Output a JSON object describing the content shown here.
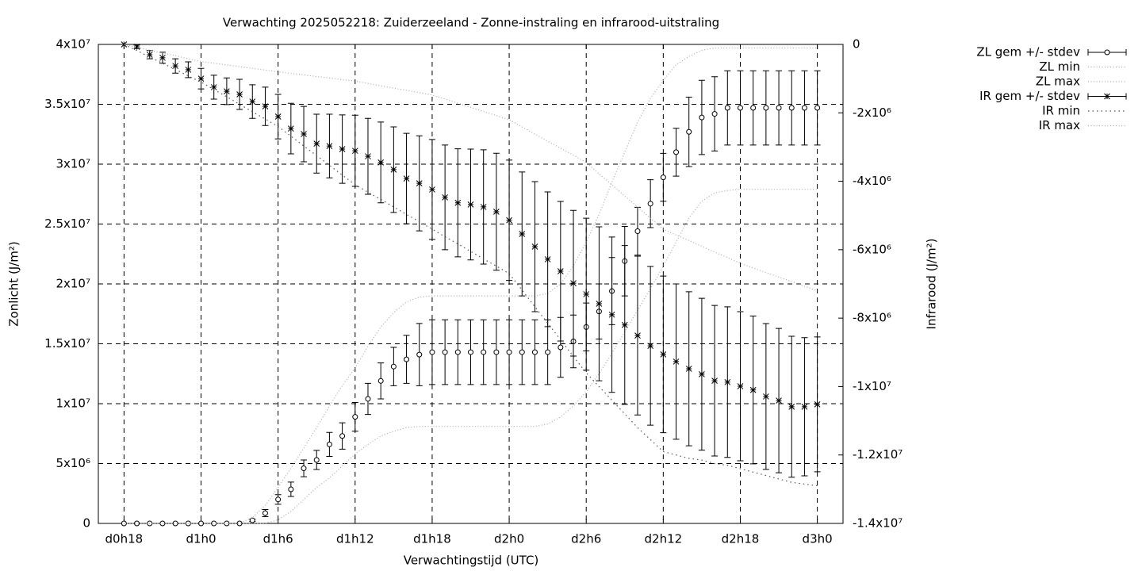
{
  "chart_data": {
    "type": "errorbar",
    "title": "Verwachting 2025052218: Zuiderzeeland - Zonne-instraling en infrarood-uitstraling",
    "xlabel": "Verwachtingstijd (UTC)",
    "ylabel": "Zonlicht (J/m²)",
    "y2label": "Infrarood (J/m²)",
    "grid": true,
    "legend": "outside-top-right",
    "xlim": [
      16,
      74
    ],
    "xticks": [
      {
        "value": 18,
        "label": "d0h18"
      },
      {
        "value": 24,
        "label": "d1h0"
      },
      {
        "value": 30,
        "label": "d1h6"
      },
      {
        "value": 36,
        "label": "d1h12"
      },
      {
        "value": 42,
        "label": "d1h18"
      },
      {
        "value": 48,
        "label": "d2h0"
      },
      {
        "value": 54,
        "label": "d2h6"
      },
      {
        "value": 60,
        "label": "d2h12"
      },
      {
        "value": 66,
        "label": "d2h18"
      },
      {
        "value": 72,
        "label": "d3h0"
      }
    ],
    "ylim": [
      0,
      40000000.0
    ],
    "yticks": [
      0,
      {
        "value": 5000000.0,
        "label": "5x10⁶"
      },
      {
        "value": 10000000.0,
        "label": "1x10⁷"
      },
      {
        "value": 15000000.0,
        "label": "1.5x10⁷"
      },
      {
        "value": 20000000.0,
        "label": "2x10⁷"
      },
      {
        "value": 25000000.0,
        "label": "2.5x10⁷"
      },
      {
        "value": 30000000.0,
        "label": "3x10⁷"
      },
      {
        "value": 35000000.0,
        "label": "3.5x10⁷"
      },
      {
        "value": 40000000.0,
        "label": "4x10⁷"
      }
    ],
    "y2lim": [
      -14000000.0,
      0
    ],
    "y2ticks": [
      0,
      {
        "value": -2000000.0,
        "label": "-2x10⁶"
      },
      {
        "value": -4000000.0,
        "label": "-4x10⁶"
      },
      {
        "value": -6000000.0,
        "label": "-6x10⁶"
      },
      {
        "value": -8000000.0,
        "label": "-8x10⁶"
      },
      {
        "value": -10000000.0,
        "label": "-1x10⁷"
      },
      {
        "value": -12000000.0,
        "label": "-1.2x10⁷"
      },
      {
        "value": -14000000.0,
        "label": "-1.4x10⁷"
      }
    ],
    "x": [
      18,
      19,
      20,
      21,
      22,
      23,
      24,
      25,
      26,
      27,
      28,
      29,
      30,
      31,
      32,
      33,
      34,
      35,
      36,
      37,
      38,
      39,
      40,
      41,
      42,
      43,
      44,
      45,
      46,
      47,
      48,
      49,
      50,
      51,
      52,
      53,
      54,
      55,
      56,
      57,
      58,
      59,
      60,
      61,
      62,
      63,
      64,
      65,
      66,
      67,
      68,
      69,
      70,
      71,
      72
    ],
    "series": [
      {
        "name": "ZL gem +/- stdev",
        "color": "#000000",
        "style": "errorbars",
        "marker": "circle",
        "axis": "y",
        "values": [
          0,
          0,
          0,
          0,
          0,
          0,
          0,
          0,
          0,
          0,
          260000.0,
          860000.0,
          2000000.0,
          2850000.0,
          4600000.0,
          5300000.0,
          6600000.0,
          7300000.0,
          8900000.0,
          10400000.0,
          11900000.0,
          13100000.0,
          13700000.0,
          14100000.0,
          14300000.0,
          14300000.0,
          14300000.0,
          14300000.0,
          14300000.0,
          14300000.0,
          14300000.0,
          14300000.0,
          14300000.0,
          14300000.0,
          14700000.0,
          15200000.0,
          16400000.0,
          17700000.0,
          19400000.0,
          21900000.0,
          24400000.0,
          26700000.0,
          28900000.0,
          31000000.0,
          32700000.0,
          33900000.0,
          34200000.0,
          34700000.0,
          34700000.0,
          34700000.0,
          34700000.0,
          34700000.0,
          34700000.0,
          34700000.0,
          34700000.0
        ],
        "errors": [
          0,
          0,
          0,
          0,
          0,
          0,
          0,
          0,
          0,
          0,
          100000.0,
          300000.0,
          400000.0,
          600000.0,
          700000.0,
          800000.0,
          1000000.0,
          1100000.0,
          1200000.0,
          1300000.0,
          1500000.0,
          1600000.0,
          2000000.0,
          2600000.0,
          2700000.0,
          2700000.0,
          2700000.0,
          2700000.0,
          2700000.0,
          2700000.0,
          2700000.0,
          2700000.0,
          2700000.0,
          2700000.0,
          2500000.0,
          2200000.0,
          2000000.0,
          2300000.0,
          2800000.0,
          2900000.0,
          2000000.0,
          2000000.0,
          2000000.0,
          2000000.0,
          2900000.0,
          3100000.0,
          3100000.0,
          3100000.0,
          3100000.0,
          3100000.0,
          3100000.0,
          3100000.0,
          3100000.0,
          3100000.0,
          3100000.0
        ]
      },
      {
        "name": "ZL min",
        "color": "#aaaaaa",
        "style": "dots",
        "axis": "y",
        "values": [
          0,
          0,
          0,
          0,
          0,
          0,
          0,
          0,
          0,
          0,
          0,
          0,
          300000.0,
          1000000.0,
          2000000.0,
          3000000.0,
          3800000.0,
          4800000.0,
          5800000.0,
          6600000.0,
          7300000.0,
          7700000.0,
          8000000.0,
          8100000.0,
          8100000.0,
          8100000.0,
          8100000.0,
          8100000.0,
          8100000.0,
          8100000.0,
          8100000.0,
          8100000.0,
          8100000.0,
          8300000.0,
          8900000.0,
          9800000.0,
          11000000.0,
          12500000.0,
          14200000.0,
          16000000.0,
          17800000.0,
          19600000.0,
          21500000.0,
          23500000.0,
          25500000.0,
          26900000.0,
          27600000.0,
          27800000.0,
          27900000.0,
          27900000.0,
          27900000.0,
          27900000.0,
          27900000.0,
          27900000.0,
          27900000.0
        ]
      },
      {
        "name": "ZL max",
        "color": "#aaaaaa",
        "style": "dots",
        "axis": "y",
        "values": [
          0,
          0,
          0,
          0,
          0,
          0,
          0,
          0,
          0,
          0,
          500000.0,
          1500000.0,
          3000000.0,
          4600000.0,
          6300000.0,
          8000000.0,
          9800000.0,
          11500000.0,
          13000000.0,
          14800000.0,
          16400000.0,
          17600000.0,
          18500000.0,
          18900000.0,
          19000000.0,
          19000000.0,
          19000000.0,
          19000000.0,
          19000000.0,
          19000000.0,
          19000000.0,
          19000000.0,
          19000000.0,
          19200000.0,
          20000000.0,
          21500000.0,
          23500000.0,
          25800000.0,
          28500000.0,
          31000000.0,
          33500000.0,
          35500000.0,
          37000000.0,
          38300000.0,
          39000000.0,
          39500000.0,
          39700000.0,
          39700000.0,
          39700000.0,
          39700000.0,
          39700000.0,
          39700000.0,
          39700000.0,
          39700000.0,
          39700000.0
        ]
      },
      {
        "name": "IR gem +/- stdev",
        "color": "#000000",
        "style": "errorbars",
        "marker": "star",
        "axis": "y2",
        "values": [
          0,
          -70000.0,
          -300000.0,
          -390000.0,
          -630000.0,
          -740000.0,
          -1000000.0,
          -1250000.0,
          -1370000.0,
          -1460000.0,
          -1670000.0,
          -1810000.0,
          -2110000.0,
          -2460000.0,
          -2620000.0,
          -2900000.0,
          -2970000.0,
          -3060000.0,
          -3110000.0,
          -3270000.0,
          -3450000.0,
          -3660000.0,
          -3920000.0,
          -4060000.0,
          -4240000.0,
          -4470000.0,
          -4630000.0,
          -4680000.0,
          -4750000.0,
          -4890000.0,
          -5140000.0,
          -5540000.0,
          -5910000.0,
          -6280000.0,
          -6630000.0,
          -6980000.0,
          -7300000.0,
          -7580000.0,
          -7900000.0,
          -8200000.0,
          -8510000.0,
          -8810000.0,
          -9060000.0,
          -9270000.0,
          -9480000.0,
          -9640000.0,
          -9830000.0,
          -9870000.0,
          -9990000.0,
          -10100000.0,
          -10290000.0,
          -10410000.0,
          -10590000.0,
          -10590000.0,
          -10520000.0
        ],
        "errors": [
          0,
          50000.0,
          120000.0,
          160000.0,
          210000.0,
          230000.0,
          300000.0,
          350000.0,
          390000.0,
          440000.0,
          490000.0,
          560000.0,
          650000.0,
          740000.0,
          810000.0,
          860000.0,
          930000.0,
          1000000.0,
          1040000.0,
          1110000.0,
          1180000.0,
          1250000.0,
          1320000.0,
          1390000.0,
          1460000.0,
          1530000.0,
          1580000.0,
          1620000.0,
          1670000.0,
          1710000.0,
          1760000.0,
          1810000.0,
          1900000.0,
          1970000.0,
          2040000.0,
          2130000.0,
          2220000.0,
          2250000.0,
          2270000.0,
          2320000.0,
          2320000.0,
          2320000.0,
          2290000.0,
          2270000.0,
          2250000.0,
          2220000.0,
          2200000.0,
          2200000.0,
          2180000.0,
          2160000.0,
          2130000.0,
          2110000.0,
          2060000.0,
          2020000.0,
          1970000.0
        ]
      },
      {
        "name": "IR min",
        "color": "#555555",
        "style": "dots",
        "axis": "y2",
        "values": [
          0,
          -180000.0,
          -370000.0,
          -550000.0,
          -730000.0,
          -920000.0,
          -1100000.0,
          -1320000.0,
          -1530000.0,
          -1750000.0,
          -1970000.0,
          -2180000.0,
          -2400000.0,
          -2680000.0,
          -2970000.0,
          -3250000.0,
          -3530000.0,
          -3820000.0,
          -4100000.0,
          -4320000.0,
          -4530000.0,
          -4750000.0,
          -4970000.0,
          -5180000.0,
          -5400000.0,
          -5620000.0,
          -5830000.0,
          -6050000.0,
          -6270000.0,
          -6480000.0,
          -6700000.0,
          -7180000.0,
          -7670000.0,
          -8150000.0,
          -8630000.0,
          -9120000.0,
          -9600000.0,
          -10000000.0,
          -10400000.0,
          -10800000.0,
          -11200000.0,
          -11550000.0,
          -11900000.0,
          -12000000.0,
          -12100000.0,
          -12150000.0,
          -12250000.0,
          -12300000.0,
          -12400000.0,
          -12500000.0,
          -12600000.0,
          -12700000.0,
          -12800000.0,
          -12850000.0,
          -12900000.0
        ]
      },
      {
        "name": "IR max",
        "color": "#aaaaaa",
        "style": "dots",
        "axis": "y2",
        "values": [
          0,
          -80000.0,
          -170000.0,
          -250000.0,
          -330000.0,
          -420000.0,
          -500000.0,
          -550000.0,
          -600000.0,
          -650000.0,
          -700000.0,
          -750000.0,
          -800000.0,
          -850000.0,
          -890000.0,
          -940000.0,
          -980000.0,
          -1030000.0,
          -1070000.0,
          -1140000.0,
          -1210000.0,
          -1280000.0,
          -1340000.0,
          -1410000.0,
          -1480000.0,
          -1600000.0,
          -1720000.0,
          -1840000.0,
          -1960000.0,
          -2080000.0,
          -2200000.0,
          -2410000.0,
          -2620000.0,
          -2830000.0,
          -3030000.0,
          -3240000.0,
          -3450000.0,
          -3780000.0,
          -4100000.0,
          -4430000.0,
          -4750000.0,
          -5080000.0,
          -5400000.0,
          -5570000.0,
          -5730000.0,
          -5900000.0,
          -6070000.0,
          -6230000.0,
          -6400000.0,
          -6530000.0,
          -6670000.0,
          -6800000.0,
          -6930000.0,
          -7070000.0,
          -7200000.0
        ]
      }
    ]
  }
}
